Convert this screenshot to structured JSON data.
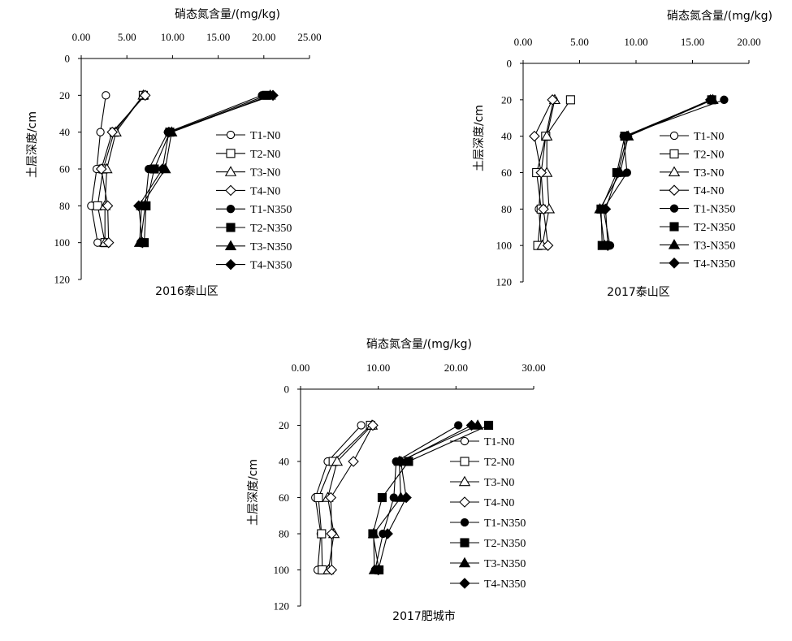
{
  "chart_data": [
    {
      "type": "line",
      "title": "2016泰山区",
      "xlabel": "硝态氮含量/(mg/kg)",
      "ylabel": "土层深度/cm",
      "xlim": [
        0,
        25
      ],
      "ylim": [
        0,
        120
      ],
      "x_ticks": [
        "0.00",
        "5.00",
        "10.00",
        "15.00",
        "20.00",
        "25.00"
      ],
      "y_ticks": [
        "0",
        "20",
        "40",
        "60",
        "80",
        "100",
        "120"
      ],
      "y_axis_inverted": true,
      "x_axis_position": "top",
      "legend": "right",
      "depths": [
        20,
        40,
        60,
        80,
        100
      ],
      "series": [
        {
          "name": "T1-N0",
          "marker": "circle-open",
          "x": [
            2.7,
            2.1,
            1.7,
            1.1,
            1.8
          ]
        },
        {
          "name": "T2-N0",
          "marker": "square-open",
          "x": [
            6.8,
            3.6,
            2.4,
            1.8,
            2.6
          ]
        },
        {
          "name": "T3-N0",
          "marker": "triangle-open",
          "x": [
            6.8,
            3.8,
            2.8,
            2.6,
            2.6
          ]
        },
        {
          "name": "T4-N0",
          "marker": "diamond-open",
          "x": [
            7.0,
            3.4,
            2.2,
            2.9,
            3.0
          ]
        },
        {
          "name": "T1-N350",
          "marker": "circle-filled",
          "x": [
            19.8,
            9.5,
            7.4,
            7.0,
            6.5
          ]
        },
        {
          "name": "T2-N350",
          "marker": "square-filled",
          "x": [
            20.3,
            9.7,
            8.0,
            7.1,
            6.9
          ]
        },
        {
          "name": "T3-N350",
          "marker": "triangle-filled",
          "x": [
            20.7,
            9.9,
            9.2,
            6.6,
            6.4
          ]
        },
        {
          "name": "T4-N350",
          "marker": "diamond-filled",
          "x": [
            21.0,
            9.6,
            8.9,
            6.3,
            6.7
          ]
        }
      ]
    },
    {
      "type": "line",
      "title": "2017泰山区",
      "xlabel": "硝态氮含量/(mg/kg)",
      "ylabel": "土层深度/cm",
      "xlim": [
        0,
        20
      ],
      "ylim": [
        0,
        120
      ],
      "x_ticks": [
        "0.00",
        "5.00",
        "10.00",
        "15.00",
        "20.00"
      ],
      "y_ticks": [
        "0",
        "20",
        "40",
        "60",
        "80",
        "100",
        "120"
      ],
      "y_axis_inverted": true,
      "x_axis_position": "top",
      "legend": "right",
      "depths": [
        20,
        40,
        60,
        80,
        100
      ],
      "series": [
        {
          "name": "T1-N0",
          "marker": "circle-open",
          "x": [
            2.7,
            2.0,
            1.6,
            1.4,
            1.6
          ]
        },
        {
          "name": "T2-N0",
          "marker": "square-open",
          "x": [
            4.2,
            2.0,
            1.2,
            1.6,
            1.3
          ]
        },
        {
          "name": "T3-N0",
          "marker": "triangle-open",
          "x": [
            2.8,
            2.1,
            2.1,
            2.3,
            1.7
          ]
        },
        {
          "name": "T4-N0",
          "marker": "diamond-open",
          "x": [
            2.6,
            1.0,
            1.6,
            1.8,
            2.2
          ]
        },
        {
          "name": "T1-N350",
          "marker": "circle-filled",
          "x": [
            17.8,
            8.9,
            9.2,
            7.1,
            7.7
          ]
        },
        {
          "name": "T2-N350",
          "marker": "square-filled",
          "x": [
            16.7,
            9.0,
            8.3,
            6.9,
            7.0
          ]
        },
        {
          "name": "T3-N350",
          "marker": "triangle-filled",
          "x": [
            16.8,
            9.3,
            8.6,
            6.8,
            7.2
          ]
        },
        {
          "name": "T4-N350",
          "marker": "diamond-filled",
          "x": [
            16.6,
            9.2,
            8.4,
            7.3,
            7.5
          ]
        }
      ]
    },
    {
      "type": "line",
      "title": "2017肥城市",
      "xlabel": "硝态氮含量/(mg/kg)",
      "ylabel": "土层深度/cm",
      "xlim": [
        0,
        30
      ],
      "ylim": [
        0,
        120
      ],
      "x_ticks": [
        "0.00",
        "10.00",
        "20.00",
        "30.00"
      ],
      "y_ticks": [
        "0",
        "20",
        "40",
        "60",
        "80",
        "100",
        "120"
      ],
      "y_axis_inverted": true,
      "x_axis_position": "top",
      "legend": "right",
      "depths": [
        20,
        40,
        60,
        80,
        100
      ],
      "series": [
        {
          "name": "T1-N0",
          "marker": "circle-open",
          "x": [
            7.8,
            3.5,
            1.9,
            2.6,
            2.2
          ]
        },
        {
          "name": "T2-N0",
          "marker": "square-open",
          "x": [
            9.0,
            4.2,
            2.3,
            2.7,
            2.8
          ]
        },
        {
          "name": "T3-N0",
          "marker": "triangle-open",
          "x": [
            9.2,
            4.7,
            3.5,
            4.3,
            3.6
          ]
        },
        {
          "name": "T4-N0",
          "marker": "diamond-open",
          "x": [
            9.3,
            6.8,
            3.9,
            4.0,
            4.0
          ]
        },
        {
          "name": "T1-N350",
          "marker": "circle-filled",
          "x": [
            20.3,
            12.3,
            12.0,
            10.6,
            9.6
          ]
        },
        {
          "name": "T2-N350",
          "marker": "square-filled",
          "x": [
            24.2,
            13.9,
            10.5,
            9.3,
            10.1
          ]
        },
        {
          "name": "T3-N350",
          "marker": "triangle-filled",
          "x": [
            22.8,
            12.7,
            12.9,
            9.4,
            9.5
          ]
        },
        {
          "name": "T4-N350",
          "marker": "diamond-filled",
          "x": [
            22.0,
            12.9,
            13.6,
            11.2,
            10.0
          ]
        }
      ]
    }
  ]
}
